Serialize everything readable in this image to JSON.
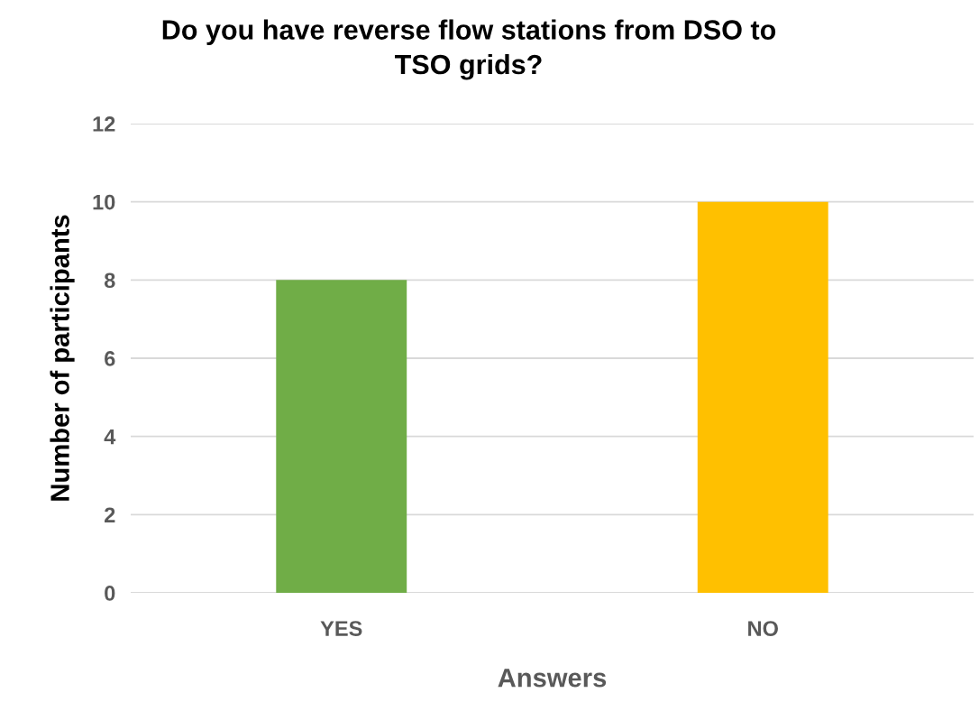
{
  "chart_data": {
    "type": "bar",
    "title": "Do you have reverse flow stations from DSO to\nTSO grids?",
    "xlabel": "Answers",
    "ylabel": "Number of participants",
    "categories": [
      "YES",
      "NO"
    ],
    "values": [
      8,
      10
    ],
    "colors": [
      "#70ad47",
      "#ffc000"
    ],
    "ylim": [
      0,
      12
    ],
    "yticks": [
      0,
      2,
      4,
      6,
      8,
      10,
      12
    ],
    "grid": "y",
    "legend": false
  }
}
